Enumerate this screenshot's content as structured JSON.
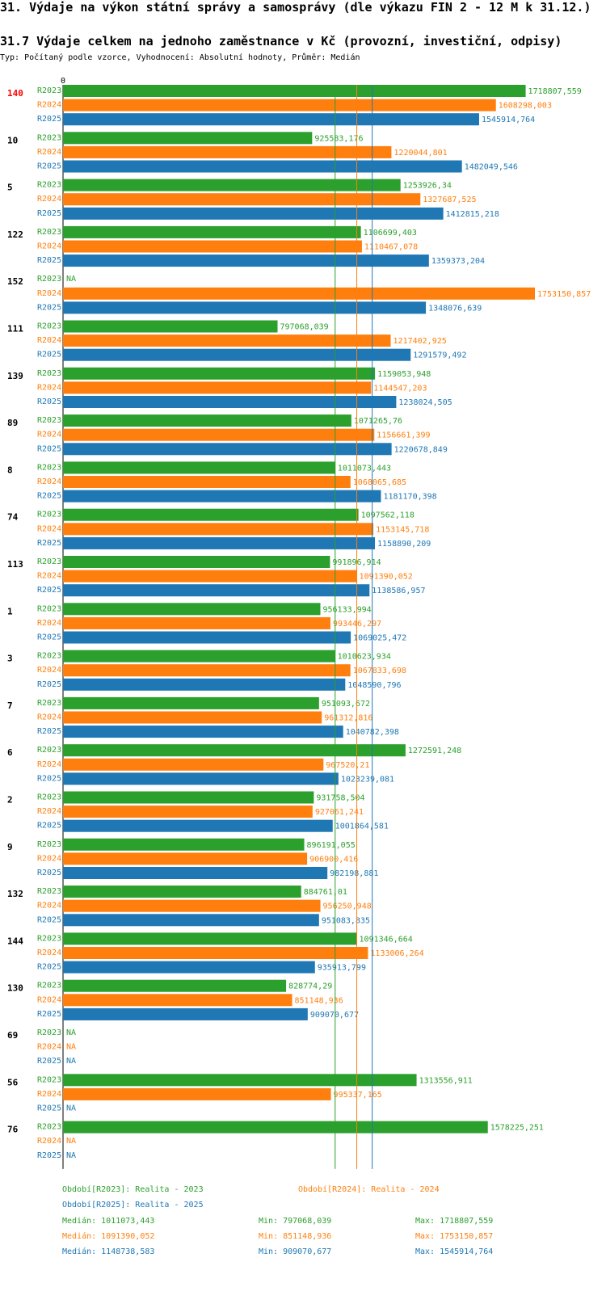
{
  "header": {
    "title": "31. Výdaje na výkon státní správy a samosprávy (dle výkazu FIN 2 - 12 M k 31.12.)",
    "subtitle": "31.7 Výdaje celkem na jednoho zaměstnance v Kč (provozní, investiční, odpisy)",
    "type_line": "Typ: Počítaný podle vzorce, Vyhodnocení: Absolutní hodnoty, Průměr: Medián"
  },
  "colors": {
    "R2023": "#2ca02c",
    "R2024": "#ff7f0e",
    "R2025": "#1f77b4",
    "highlight": "#ff0000"
  },
  "chart_data": {
    "type": "bar",
    "orientation": "horizontal",
    "axis_zero_label": "0",
    "xlim": [
      0,
      1753150.857
    ],
    "na_label": "NA",
    "highlight_group": "140",
    "series_names": [
      "R2023",
      "R2024",
      "R2025"
    ],
    "groups": [
      {
        "id": "140",
        "values": [
          1718807.559,
          1608298.003,
          1545914.764
        ],
        "labels": [
          "1718807,559",
          "1608298,003",
          "1545914,764"
        ]
      },
      {
        "id": "10",
        "values": [
          925583.176,
          1220044.801,
          1482049.546
        ],
        "labels": [
          "925583,176",
          "1220044,801",
          "1482049,546"
        ]
      },
      {
        "id": "5",
        "values": [
          1253926.34,
          1327687.525,
          1412815.218
        ],
        "labels": [
          "1253926,34",
          "1327687,525",
          "1412815,218"
        ]
      },
      {
        "id": "122",
        "values": [
          1106699.403,
          1110467.078,
          1359373.204
        ],
        "labels": [
          "1106699,403",
          "1110467,078",
          "1359373,204"
        ]
      },
      {
        "id": "152",
        "values": [
          null,
          1753150.857,
          1348076.639
        ],
        "labels": [
          "NA",
          "1753150,857",
          "1348076,639"
        ]
      },
      {
        "id": "111",
        "values": [
          797068.039,
          1217402.925,
          1291579.492
        ],
        "labels": [
          "797068,039",
          "1217402,925",
          "1291579,492"
        ]
      },
      {
        "id": "139",
        "values": [
          1159053.948,
          1144547.203,
          1238024.505
        ],
        "labels": [
          "1159053,948",
          "1144547,203",
          "1238024,505"
        ]
      },
      {
        "id": "89",
        "values": [
          1071265.76,
          1156661.399,
          1220678.849
        ],
        "labels": [
          "1071265,76",
          "1156661,399",
          "1220678,849"
        ]
      },
      {
        "id": "8",
        "values": [
          1011073.443,
          1068065.685,
          1181170.398
        ],
        "labels": [
          "1011073,443",
          "1068065,685",
          "1181170,398"
        ]
      },
      {
        "id": "74",
        "values": [
          1097562.118,
          1153145.718,
          1158890.209
        ],
        "labels": [
          "1097562,118",
          "1153145,718",
          "1158890,209"
        ]
      },
      {
        "id": "113",
        "values": [
          991896.914,
          1091390.052,
          1138586.957
        ],
        "labels": [
          "991896,914",
          "1091390,052",
          "1138586,957"
        ]
      },
      {
        "id": "1",
        "values": [
          956133.994,
          993446.297,
          1069025.472
        ],
        "labels": [
          "956133,994",
          "993446,297",
          "1069025,472"
        ]
      },
      {
        "id": "3",
        "values": [
          1010623.934,
          1067833.698,
          1048590.796
        ],
        "labels": [
          "1010623,934",
          "1067833,698",
          "1048590,796"
        ]
      },
      {
        "id": "7",
        "values": [
          951093.672,
          961312.816,
          1040782.398
        ],
        "labels": [
          "951093,672",
          "961312,816",
          "1040782,398"
        ]
      },
      {
        "id": "6",
        "values": [
          1272591.248,
          967520.21,
          1023239.081
        ],
        "labels": [
          "1272591,248",
          "967520,21",
          "1023239,081"
        ]
      },
      {
        "id": "2",
        "values": [
          931758.504,
          927061.241,
          1001864.581
        ],
        "labels": [
          "931758,504",
          "927061,241",
          "1001864,581"
        ]
      },
      {
        "id": "9",
        "values": [
          896191.055,
          906900.416,
          982198.881
        ],
        "labels": [
          "896191,055",
          "906900,416",
          "982198,881"
        ]
      },
      {
        "id": "132",
        "values": [
          884761.01,
          956250.948,
          951083.835
        ],
        "labels": [
          "884761,01",
          "956250,948",
          "951083,835"
        ]
      },
      {
        "id": "144",
        "values": [
          1091346.664,
          1133006.264,
          935913.799
        ],
        "labels": [
          "1091346,664",
          "1133006,264",
          "935913,799"
        ]
      },
      {
        "id": "130",
        "values": [
          828774.29,
          851148.936,
          909070.677
        ],
        "labels": [
          "828774,29",
          "851148,936",
          "909070,677"
        ]
      },
      {
        "id": "69",
        "values": [
          null,
          null,
          null
        ],
        "labels": [
          "NA",
          "NA",
          "NA"
        ]
      },
      {
        "id": "56",
        "values": [
          1313556.911,
          995337.165,
          null
        ],
        "labels": [
          "1313556,911",
          "995337,165",
          "NA"
        ]
      },
      {
        "id": "76",
        "values": [
          1578225.251,
          null,
          null
        ],
        "labels": [
          "1578225,251",
          "NA",
          "NA"
        ]
      }
    ],
    "medians": [
      1011073.443,
      1091390.052,
      1148738.583
    ]
  },
  "legend": {
    "period_r2023": "Období[R2023]: Realita - 2023",
    "period_r2024": "Období[R2024]: Realita - 2024",
    "period_r2025": "Období[R2025]: Realita - 2025",
    "stats": [
      {
        "median": "Medián: 1011073,443",
        "min": "Min: 797068,039",
        "max": "Max: 1718807,559"
      },
      {
        "median": "Medián: 1091390,052",
        "min": "Min: 851148,936",
        "max": "Max: 1753150,857"
      },
      {
        "median": "Medián: 1148738,583",
        "min": "Min: 909070,677",
        "max": "Max: 1545914,764"
      }
    ]
  }
}
